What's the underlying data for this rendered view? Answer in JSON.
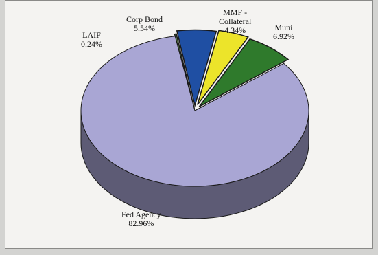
{
  "chart_data": {
    "type": "pie",
    "title": "",
    "style": "3d-exploded",
    "slices": [
      {
        "name": "LAIF",
        "value": 0.24,
        "label_value": "0.24%",
        "color": "#5f8a4c"
      },
      {
        "name": "Corp Bond",
        "value": 5.54,
        "label_value": "5.54%",
        "color": "#1f4fa3"
      },
      {
        "name": "MMF -\nCollateral",
        "name_line1": "MMF -",
        "name_line2": "Collateral",
        "value": 4.34,
        "label_value": "4.34%",
        "color": "#ece42a"
      },
      {
        "name": "Muni",
        "value": 6.92,
        "label_value": "6.92%",
        "color": "#2f7a2c"
      },
      {
        "name": "Fed Agency",
        "value": 82.96,
        "label_value": "82.96%",
        "color": "#a9a6d4"
      }
    ]
  },
  "colors": {
    "background": "#f4f3f1",
    "border": "#8a8a88",
    "slice_outline": "#1a1a1a"
  }
}
